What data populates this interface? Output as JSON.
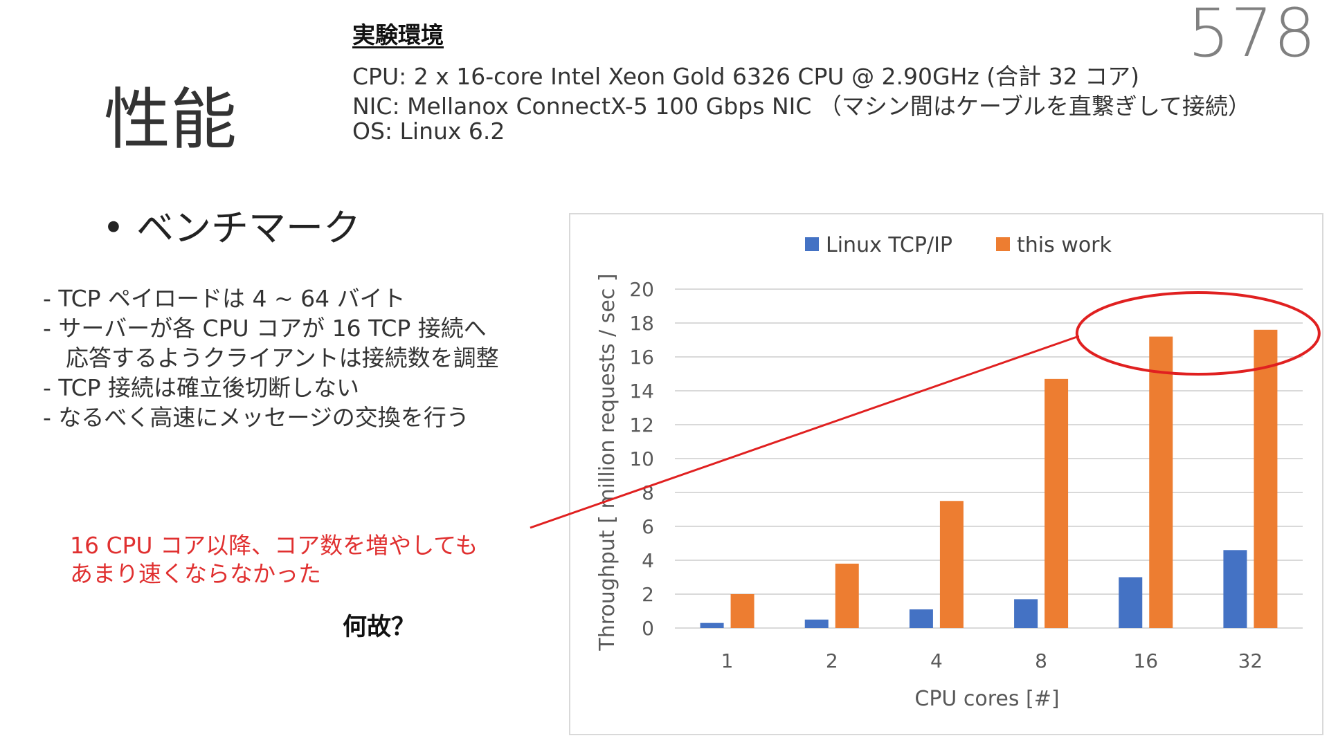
{
  "page_number": "578",
  "title": "性能",
  "environment": {
    "heading": "実験環境",
    "lines": [
      "CPU: 2 x 16-core Intel Xeon Gold 6326 CPU @ 2.90GHz (合計 32 コア)",
      "NIC: Mellanox ConnectX-5 100 Gbps NIC （マシン間はケーブルを直繋ぎして接続）",
      "OS: Linux 6.2"
    ]
  },
  "bullet": "• ベンチマーク",
  "notes": [
    "- TCP ペイロードは 4 ~ 64 バイト",
    "- サーバーが各 CPU コアが 16 TCP 接続へ",
    "　応答するようクライアントは接続数を調整",
    "- TCP 接続は確立後切断しない",
    "- なるべく高速にメッセージの交換を行う"
  ],
  "callout": {
    "lines": [
      "16 CPU コア以降、コア数を増やしても",
      "あまり速くならなかった"
    ],
    "color": "#e03030"
  },
  "question": "何故？",
  "chart_data": {
    "type": "bar",
    "categories": [
      "1",
      "2",
      "4",
      "8",
      "16",
      "32"
    ],
    "series": [
      {
        "name": "Linux TCP/IP",
        "color": "#4472c4",
        "values": [
          0.3,
          0.5,
          1.1,
          1.7,
          3.0,
          4.6
        ]
      },
      {
        "name": "this work",
        "color": "#ed7d31",
        "values": [
          2.0,
          3.8,
          7.5,
          14.7,
          17.2,
          17.6
        ]
      }
    ],
    "xlabel": "CPU cores [#]",
    "ylabel": "Throughput [ million requests / sec ]",
    "ylim": [
      0,
      20
    ],
    "yticks": [
      "0",
      "2",
      "4",
      "6",
      "8",
      "10",
      "12",
      "14",
      "16",
      "18",
      "20"
    ],
    "grid": true,
    "legend_position": "top",
    "gridline_color": "#d9d9d9",
    "annotation": {
      "shape": "ellipse",
      "target_categories": [
        "16",
        "32"
      ],
      "color": "#e02020"
    }
  }
}
